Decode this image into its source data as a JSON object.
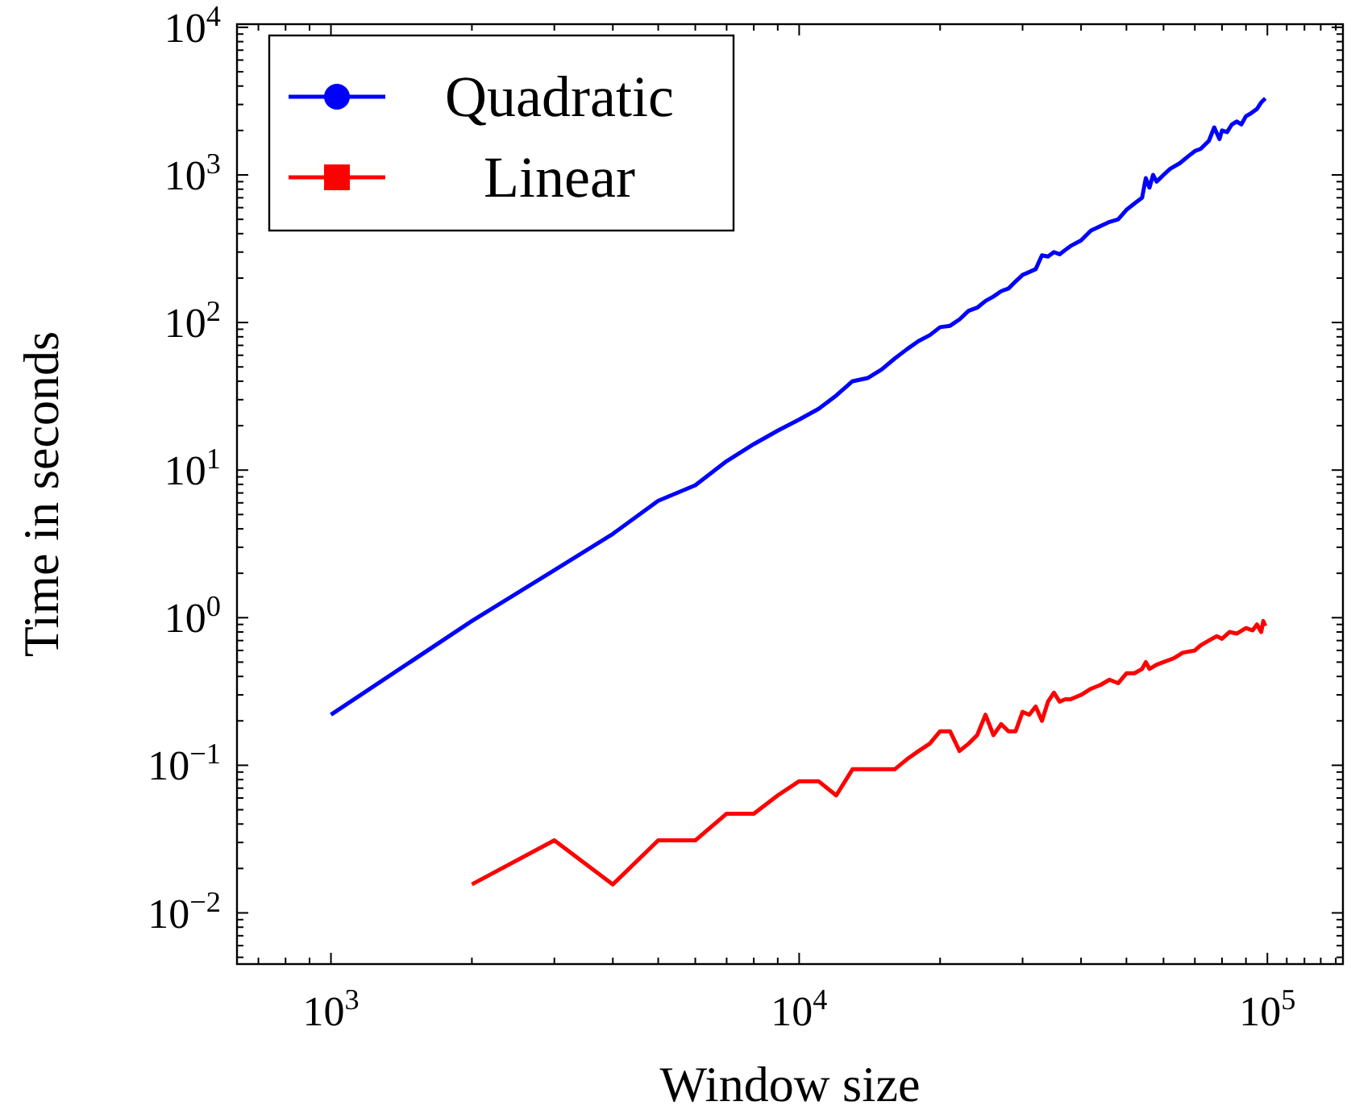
{
  "chart_data": {
    "type": "line",
    "xlabel": "Window size",
    "ylabel": "Time in seconds",
    "log": "xy",
    "legend": "top left",
    "grid": false,
    "xlim": [
      630,
      145000
    ],
    "xticks": [
      {
        "value": 700,
        "label": null
      },
      {
        "value": 800,
        "label": null
      },
      {
        "value": 900,
        "label": null
      },
      {
        "value": 1000,
        "label": "10$^{3}$"
      },
      {
        "value": 2000,
        "label": null
      },
      {
        "value": 3000,
        "label": null
      },
      {
        "value": 4000,
        "label": null
      },
      {
        "value": 5000,
        "label": null
      },
      {
        "value": 6000,
        "label": null
      },
      {
        "value": 7000,
        "label": null
      },
      {
        "value": 8000,
        "label": null
      },
      {
        "value": 9000,
        "label": null
      },
      {
        "value": 10000,
        "label": "10$^{4}$"
      },
      {
        "value": 20000,
        "label": null
      },
      {
        "value": 30000,
        "label": null
      },
      {
        "value": 40000,
        "label": null
      },
      {
        "value": 50000,
        "label": null
      },
      {
        "value": 60000,
        "label": null
      },
      {
        "value": 70000,
        "label": null
      },
      {
        "value": 80000,
        "label": null
      },
      {
        "value": 90000,
        "label": null
      },
      {
        "value": 100000,
        "label": "10$^{5}$"
      },
      {
        "value": 110000,
        "label": null
      },
      {
        "value": 120000,
        "label": null
      },
      {
        "value": 130000,
        "label": null
      },
      {
        "value": 140000,
        "label": null
      }
    ],
    "ylim": [
      0.0045,
      10500
    ],
    "yticks": [
      {
        "value": 0.005,
        "label": null
      },
      {
        "value": 0.006,
        "label": null
      },
      {
        "value": 0.007,
        "label": null
      },
      {
        "value": 0.008,
        "label": null
      },
      {
        "value": 0.009,
        "label": null
      },
      {
        "value": 0.01,
        "label": "10$^{−2}$"
      },
      {
        "value": 0.02,
        "label": null
      },
      {
        "value": 0.03,
        "label": null
      },
      {
        "value": 0.04,
        "label": null
      },
      {
        "value": 0.05,
        "label": null
      },
      {
        "value": 0.06,
        "label": null
      },
      {
        "value": 0.07,
        "label": null
      },
      {
        "value": 0.08,
        "label": null
      },
      {
        "value": 0.09,
        "label": null
      },
      {
        "value": 0.1,
        "label": "10$^{−1}$"
      },
      {
        "value": 0.2,
        "label": null
      },
      {
        "value": 0.3,
        "label": null
      },
      {
        "value": 0.4,
        "label": null
      },
      {
        "value": 0.5,
        "label": null
      },
      {
        "value": 0.6,
        "label": null
      },
      {
        "value": 0.7,
        "label": null
      },
      {
        "value": 0.8,
        "label": null
      },
      {
        "value": 0.9,
        "label": null
      },
      {
        "value": 1,
        "label": "10$^{0}$"
      },
      {
        "value": 2,
        "label": null
      },
      {
        "value": 3,
        "label": null
      },
      {
        "value": 4,
        "label": null
      },
      {
        "value": 5,
        "label": null
      },
      {
        "value": 6,
        "label": null
      },
      {
        "value": 7,
        "label": null
      },
      {
        "value": 8,
        "label": null
      },
      {
        "value": 9,
        "label": null
      },
      {
        "value": 10,
        "label": "10$^{1}$"
      },
      {
        "value": 20,
        "label": null
      },
      {
        "value": 30,
        "label": null
      },
      {
        "value": 40,
        "label": null
      },
      {
        "value": 50,
        "label": null
      },
      {
        "value": 60,
        "label": null
      },
      {
        "value": 70,
        "label": null
      },
      {
        "value": 80,
        "label": null
      },
      {
        "value": 90,
        "label": null
      },
      {
        "value": 100,
        "label": "10$^{2}$"
      },
      {
        "value": 200,
        "label": null
      },
      {
        "value": 300,
        "label": null
      },
      {
        "value": 400,
        "label": null
      },
      {
        "value": 500,
        "label": null
      },
      {
        "value": 600,
        "label": null
      },
      {
        "value": 700,
        "label": null
      },
      {
        "value": 800,
        "label": null
      },
      {
        "value": 900,
        "label": null
      },
      {
        "value": 1000,
        "label": "10$^{3}$"
      },
      {
        "value": 2000,
        "label": null
      },
      {
        "value": 3000,
        "label": null
      },
      {
        "value": 4000,
        "label": null
      },
      {
        "value": 5000,
        "label": null
      },
      {
        "value": 6000,
        "label": null
      },
      {
        "value": 7000,
        "label": null
      },
      {
        "value": 8000,
        "label": null
      },
      {
        "value": 9000,
        "label": null
      },
      {
        "value": 10000,
        "label": "10$^{4}$"
      }
    ],
    "series": [
      {
        "name": "Quadratic",
        "color": "#0000ff",
        "x": [
          1000,
          2000,
          3000,
          4000,
          5000,
          6000,
          7000,
          8000,
          9000,
          10000,
          11000,
          12000,
          13000,
          14000,
          15000,
          16000,
          17000,
          18000,
          19000,
          20000,
          21000,
          22000,
          23000,
          24000,
          25000,
          26000,
          27000,
          28000,
          29000,
          30000,
          32000,
          33000,
          34000,
          35000,
          36000,
          37000,
          38000,
          40000,
          42000,
          44000,
          46000,
          48000,
          50000,
          52000,
          54000,
          55000,
          56000,
          57000,
          58000,
          60000,
          62000,
          65000,
          68000,
          70000,
          72000,
          75000,
          77000,
          79000,
          80000,
          82000,
          84000,
          86000,
          88000,
          90000,
          92000,
          95000,
          97000,
          99000
        ],
        "values": [
          0.22,
          0.95,
          2.1,
          3.7,
          6.2,
          7.9,
          11.5,
          15,
          18.5,
          22,
          26,
          32,
          40,
          42,
          48,
          57,
          66,
          75,
          82,
          93,
          95,
          105,
          120,
          126,
          140,
          150,
          163,
          170,
          190,
          210,
          230,
          285,
          280,
          300,
          290,
          310,
          330,
          360,
          420,
          450,
          480,
          500,
          580,
          640,
          700,
          950,
          820,
          1000,
          900,
          1000,
          1100,
          1200,
          1350,
          1450,
          1500,
          1700,
          2100,
          1750,
          2000,
          1950,
          2200,
          2300,
          2200,
          2500,
          2600,
          2800,
          3100,
          3300
        ]
      },
      {
        "name": "Linear",
        "color": "#ff0000",
        "x": [
          2000,
          3000,
          4000,
          5000,
          6000,
          7000,
          8000,
          9000,
          10000,
          11000,
          12000,
          13000,
          14000,
          15000,
          16000,
          17000,
          18000,
          19000,
          20000,
          21000,
          22000,
          23000,
          24000,
          25000,
          26000,
          27000,
          28000,
          29000,
          30000,
          31000,
          32000,
          33000,
          34000,
          35000,
          36000,
          37000,
          38000,
          40000,
          42000,
          44000,
          46000,
          48000,
          50000,
          52000,
          54000,
          55000,
          56000,
          58000,
          60000,
          63000,
          66000,
          70000,
          72000,
          75000,
          78000,
          80000,
          83000,
          86000,
          90000,
          93000,
          95000,
          97000,
          98000,
          99000
        ],
        "values": [
          0.0156,
          0.031,
          0.0156,
          0.031,
          0.031,
          0.047,
          0.047,
          0.0625,
          0.078,
          0.078,
          0.0625,
          0.094,
          0.094,
          0.094,
          0.094,
          0.11,
          0.125,
          0.14,
          0.17,
          0.17,
          0.125,
          0.14,
          0.16,
          0.22,
          0.16,
          0.19,
          0.17,
          0.17,
          0.23,
          0.22,
          0.25,
          0.2,
          0.27,
          0.31,
          0.27,
          0.28,
          0.28,
          0.3,
          0.33,
          0.35,
          0.38,
          0.36,
          0.42,
          0.42,
          0.45,
          0.5,
          0.45,
          0.48,
          0.5,
          0.53,
          0.58,
          0.6,
          0.65,
          0.7,
          0.75,
          0.72,
          0.8,
          0.78,
          0.85,
          0.82,
          0.9,
          0.8,
          0.95,
          0.88
        ]
      }
    ]
  }
}
